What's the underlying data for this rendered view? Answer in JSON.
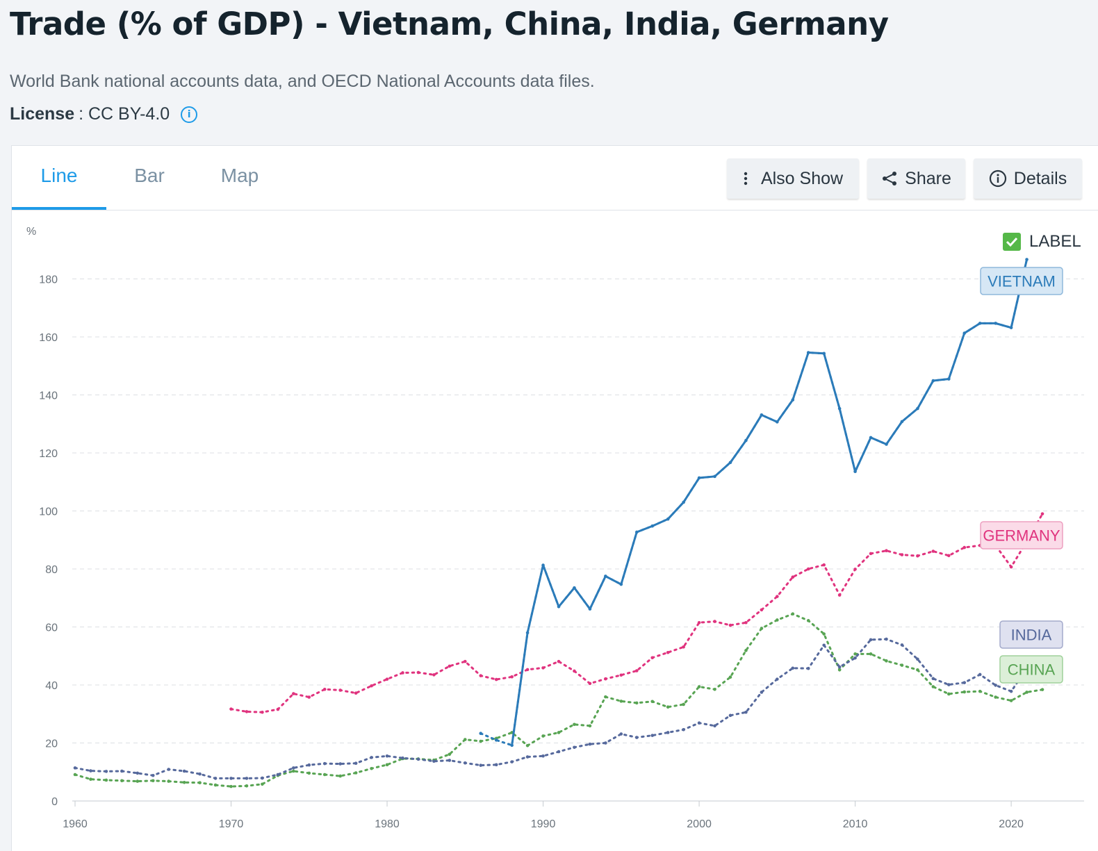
{
  "header": {
    "title": "Trade (% of GDP) - Vietnam, China, India, Germany",
    "source": "World Bank national accounts data, and OECD National Accounts data files.",
    "license_label": "License",
    "license_value": ": CC BY-4.0"
  },
  "tabs": [
    {
      "label": "Line",
      "active": true
    },
    {
      "label": "Bar",
      "active": false
    },
    {
      "label": "Map",
      "active": false
    }
  ],
  "toolbar": {
    "also_show": "Also Show",
    "share": "Share",
    "details": "Details"
  },
  "legend_toggle": {
    "label": "LABEL",
    "checked": true
  },
  "chart_data": {
    "type": "line",
    "ylabel": "%",
    "xlim": [
      1960,
      2022
    ],
    "ylim": [
      0,
      190
    ],
    "x_ticks": [
      1960,
      1970,
      1980,
      1990,
      2000,
      2010,
      2020
    ],
    "y_ticks": [
      0,
      20,
      40,
      60,
      80,
      100,
      120,
      140,
      160,
      180
    ],
    "grid": "horizontal-dashed",
    "series": [
      {
        "name": "VIETNAM",
        "color": "#2b7bb9",
        "label_fill": "#d6e7f5",
        "label_border": "#8fb8db",
        "x_start": 1986,
        "values": [
          23.3,
          21,
          19.2,
          58,
          81.3,
          67,
          73.5,
          66.2,
          77.5,
          74.7,
          92.7,
          94.8,
          97.2,
          103,
          111.4,
          111.9,
          116.7,
          124.3,
          133.1,
          130.7,
          138.3,
          154.6,
          154.3,
          135.3,
          113.6,
          125.3,
          123,
          130.8,
          135.3,
          144.9,
          145.5,
          161.3,
          164.7,
          164.7,
          163.2,
          186.7
        ]
      },
      {
        "name": "GERMANY",
        "color": "#e0337e",
        "label_fill": "#fbdbe8",
        "label_border": "#eda0c0",
        "x_start": 1970,
        "values": [
          31.7,
          30.8,
          30.6,
          31.6,
          37,
          35.8,
          38.5,
          38.2,
          37.2,
          39.7,
          42,
          44.2,
          44.3,
          43.5,
          46.5,
          48.1,
          43.2,
          41.9,
          42.8,
          45.3,
          45.9,
          48.1,
          44.8,
          40.5,
          42.1,
          43.4,
          44.9,
          49.4,
          51.2,
          53.1,
          61.5,
          61.9,
          60.6,
          61.5,
          65.9,
          70.5,
          77.2,
          80,
          81.4,
          71,
          79.9,
          85.3,
          86.3,
          84.9,
          84.5,
          86.1,
          84.6,
          87.4,
          88.1,
          88.1,
          80.7,
          89.5,
          99
        ]
      },
      {
        "name": "INDIA",
        "color": "#56699c",
        "label_fill": "#dfe1f0",
        "label_border": "#a4aacb",
        "x_start": 1960,
        "values": [
          11.4,
          10.4,
          10.2,
          10.3,
          9.6,
          8.8,
          10.9,
          10.3,
          9.3,
          7.8,
          7.8,
          7.8,
          7.9,
          9.1,
          11.4,
          12.4,
          12.9,
          12.8,
          13,
          15,
          15.5,
          14.8,
          14.4,
          13.7,
          14,
          13.1,
          12.3,
          12.5,
          13.5,
          15.2,
          15.5,
          17,
          18.5,
          19.6,
          20,
          23.1,
          21.9,
          22.6,
          23.6,
          24.6,
          26.9,
          25.9,
          29.5,
          30.6,
          37.5,
          42,
          45.8,
          45.7,
          53.7,
          46.2,
          49.3,
          55.6,
          55.8,
          53.8,
          48.9,
          42.2,
          40.1,
          40.8,
          43.6,
          39.9,
          37.8,
          45.6,
          49
        ]
      },
      {
        "name": "CHINA",
        "color": "#58a453",
        "label_fill": "#dcefd8",
        "label_border": "#9fd19a",
        "x_start": 1960,
        "values": [
          9.1,
          7.5,
          7.2,
          7,
          6.8,
          7,
          6.8,
          6.4,
          6.3,
          5.5,
          5,
          5.2,
          5.8,
          8.8,
          10.3,
          9.6,
          9.1,
          8.6,
          9.7,
          11.2,
          12.5,
          14.6,
          14.5,
          14.1,
          16.1,
          21.2,
          20.6,
          21.6,
          23.6,
          19.1,
          22.4,
          23.6,
          26.4,
          25.9,
          35.9,
          34.4,
          33.8,
          34.3,
          32.4,
          33.3,
          39.4,
          38.5,
          42.7,
          51.9,
          59.5,
          62.4,
          64.5,
          62.2,
          57.6,
          45.2,
          50.7,
          50.7,
          48.3,
          46.8,
          45.2,
          39.4,
          36.9,
          37.6,
          37.8,
          35.8,
          34.6,
          37.5,
          38.4
        ]
      }
    ]
  }
}
